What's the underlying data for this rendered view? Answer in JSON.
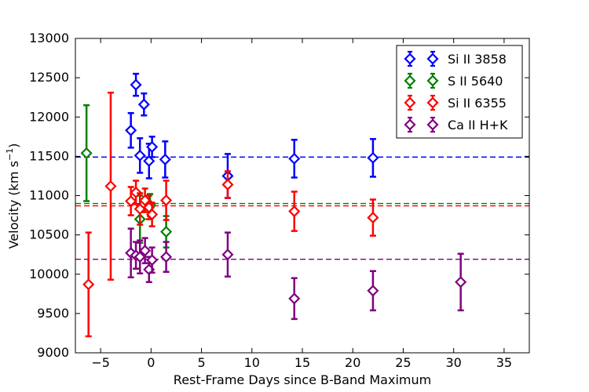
{
  "chart_data": {
    "type": "scatter",
    "title": "",
    "xlabel": "Rest-Frame Days since B-Band Maximum",
    "ylabel_main": "Velocity (km s",
    "ylabel_sup": "−1",
    "ylabel_close": ")",
    "xlim": [
      -7.5,
      37.5
    ],
    "ylim": [
      9000,
      13000
    ],
    "xticks": [
      -5,
      0,
      5,
      10,
      15,
      20,
      25,
      30,
      35
    ],
    "xtick_labels": [
      "−5",
      "0",
      "5",
      "10",
      "15",
      "20",
      "25",
      "30",
      "35"
    ],
    "yticks": [
      9000,
      9500,
      10000,
      10500,
      11000,
      11500,
      12000,
      12500,
      13000
    ],
    "ytick_labels": [
      "9000",
      "9500",
      "10000",
      "10500",
      "11000",
      "11500",
      "12000",
      "12500",
      "13000"
    ],
    "legend_position": "top-right",
    "series": [
      {
        "name": "Si II 3858",
        "color": "#0000ff",
        "mean_line": 11490,
        "points": [
          {
            "x": -2.0,
            "y": 11830,
            "err": 220
          },
          {
            "x": -1.5,
            "y": 12410,
            "err": 140
          },
          {
            "x": -1.1,
            "y": 11510,
            "err": 220
          },
          {
            "x": -0.7,
            "y": 12160,
            "err": 140
          },
          {
            "x": -0.2,
            "y": 11440,
            "err": 220
          },
          {
            "x": 0.1,
            "y": 11620,
            "err": 130
          },
          {
            "x": 1.4,
            "y": 11460,
            "err": 230
          },
          {
            "x": 7.6,
            "y": 11250,
            "err": 280
          },
          {
            "x": 14.2,
            "y": 11470,
            "err": 240
          },
          {
            "x": 22.0,
            "y": 11480,
            "err": 240
          }
        ]
      },
      {
        "name": "S II 5640",
        "color": "#008000",
        "mean_line": 10900,
        "points": [
          {
            "x": -6.4,
            "y": 11540,
            "err": 610
          },
          {
            "x": -1.1,
            "y": 10700,
            "err": 300
          },
          {
            "x": -0.1,
            "y": 10880,
            "err": 140
          },
          {
            "x": 1.5,
            "y": 10540,
            "err": 200
          }
        ]
      },
      {
        "name": "Si II 6355",
        "color": "#ff0000",
        "mean_line": 10870,
        "points": [
          {
            "x": -6.2,
            "y": 9870,
            "err": 660
          },
          {
            "x": -4.0,
            "y": 11120,
            "err": 1190
          },
          {
            "x": -2.0,
            "y": 10930,
            "err": 180
          },
          {
            "x": -1.5,
            "y": 11040,
            "err": 150
          },
          {
            "x": -1.1,
            "y": 10830,
            "err": 200
          },
          {
            "x": -0.6,
            "y": 10940,
            "err": 150
          },
          {
            "x": -0.2,
            "y": 10850,
            "err": 150
          },
          {
            "x": 0.1,
            "y": 10760,
            "err": 150
          },
          {
            "x": 1.5,
            "y": 10940,
            "err": 250
          },
          {
            "x": 7.6,
            "y": 11140,
            "err": 170
          },
          {
            "x": 14.2,
            "y": 10800,
            "err": 250
          },
          {
            "x": 22.0,
            "y": 10720,
            "err": 230
          }
        ]
      },
      {
        "name": "Ca II H+K",
        "color": "#800080",
        "mean_line": 10190,
        "points": [
          {
            "x": -2.0,
            "y": 10270,
            "err": 310
          },
          {
            "x": -1.5,
            "y": 10240,
            "err": 170
          },
          {
            "x": -1.1,
            "y": 10220,
            "err": 210
          },
          {
            "x": -0.6,
            "y": 10300,
            "err": 160
          },
          {
            "x": -0.2,
            "y": 10060,
            "err": 160
          },
          {
            "x": 0.1,
            "y": 10180,
            "err": 160
          },
          {
            "x": 1.5,
            "y": 10220,
            "err": 190
          },
          {
            "x": 7.6,
            "y": 10250,
            "err": 280
          },
          {
            "x": 14.2,
            "y": 9690,
            "err": 260
          },
          {
            "x": 22.0,
            "y": 9790,
            "err": 250
          },
          {
            "x": 30.7,
            "y": 9900,
            "err": 360
          }
        ]
      }
    ]
  }
}
